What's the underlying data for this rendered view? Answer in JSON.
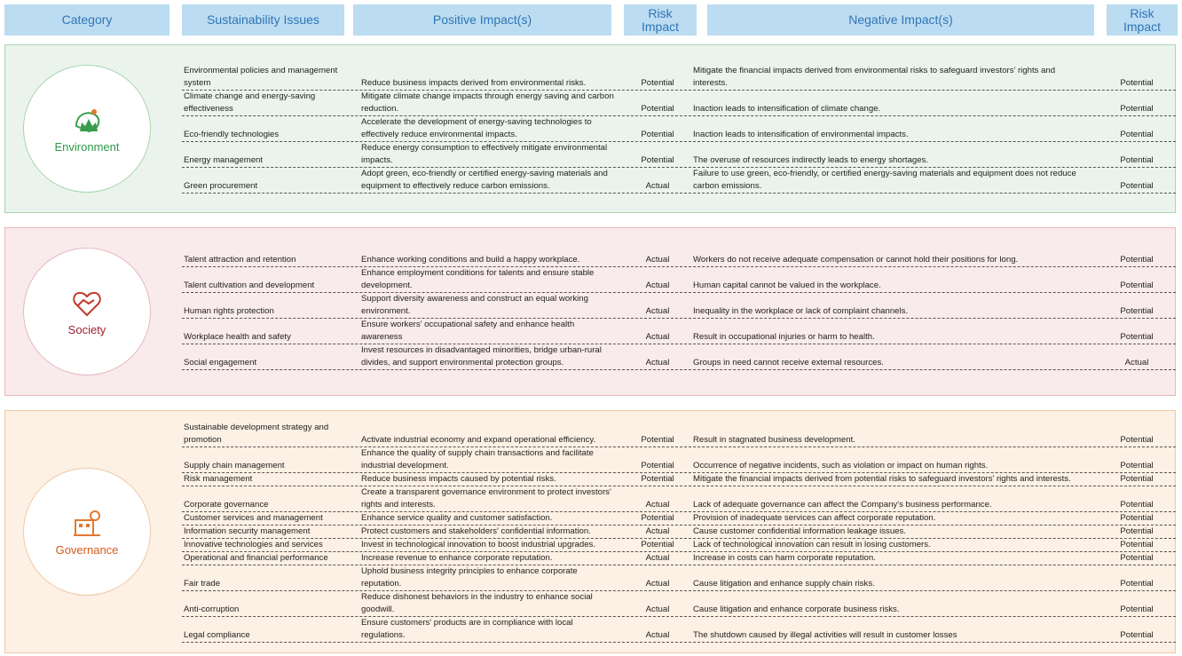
{
  "header": [
    "Category",
    "Sustainability Issues",
    "Positive Impact(s)",
    "Risk Impact",
    "Negative Impact(s)",
    "Risk Impact"
  ],
  "groups": [
    {
      "category": "Environment",
      "rows": [
        [
          "Environmental policies and management system",
          "Reduce business impacts derived from environmental risks.",
          "Potential",
          "Mitigate the financial impacts derived from environmental risks to safeguard investors’ rights and interests.",
          "Potential"
        ],
        [
          "Climate change and energy-saving effectiveness",
          "Mitigate climate change impacts through energy saving and carbon reduction.",
          "Potential",
          "Inaction leads to intensification of climate change.",
          "Potential"
        ],
        [
          "Eco-friendly technologies",
          "Accelerate the development of energy-saving technologies to effectively reduce environmental impacts.",
          "Potential",
          "Inaction leads to intensification of environmental impacts.",
          "Potential"
        ],
        [
          "Energy management",
          "Reduce energy consumption to effectively mitigate environmental impacts.",
          "Potential",
          "The overuse of resources indirectly leads to energy shortages.",
          "Potential"
        ],
        [
          "Green procurement",
          "Adopt green, eco-friendly or certified energy-saving materials and equipment to effectively reduce carbon emissions.",
          "Actual",
          "Failure to use green, eco-friendly, or certified energy-saving materials and equipment does not reduce carbon emissions.",
          "Potential"
        ]
      ]
    },
    {
      "category": "Society",
      "rows": [
        [
          "Talent attraction and retention",
          "Enhance working conditions and build a happy workplace.",
          "Actual",
          "Workers do not receive adequate compensation or cannot hold their positions for long.",
          "Potential"
        ],
        [
          "Talent cultivation and development",
          "Enhance employment conditions for talents and ensure stable development.",
          "Actual",
          "Human capital cannot be valued in the workplace.",
          "Potential"
        ],
        [
          "Human rights protection",
          "Support diversity awareness and construct an equal working environment.",
          "Actual",
          "Inequality in the workplace or lack of complaint channels.",
          "Potential"
        ],
        [
          "Workplace health and safety",
          "Ensure workers’ occupational safety and enhance health awareness",
          "Actual",
          "Result in occupational injuries or harm to health.",
          "Potential"
        ],
        [
          "Social engagement",
          "Invest resources in disadvantaged minorities, bridge urban-rural divides, and support environmental protection groups.",
          "Actual",
          "Groups in need cannot receive external resources.",
          "Actual"
        ]
      ]
    },
    {
      "category": "Governance",
      "rows": [
        [
          "Sustainable development strategy and promotion",
          "Activate industrial economy and expand operational efficiency.",
          "Potential",
          "Result in stagnated business development.",
          "Potential"
        ],
        [
          "Supply chain management",
          "Enhance the quality of supply chain transactions and facilitate industrial development.",
          "Potential",
          "Occurrence of negative incidents, such as violation or impact on human rights.",
          "Potential"
        ],
        [
          "Risk management",
          "Reduce business impacts caused by potential risks.",
          "Potential",
          "Mitigate the financial impacts derived from potential risks to safeguard investors’ rights and interests.",
          "Potential"
        ],
        [
          "Corporate governance",
          "Create a transparent governance environment to protect investors' rights and interests.",
          "Actual",
          "Lack of adequate governance can affect the Company's business performance.",
          "Potential"
        ],
        [
          "Customer services and management",
          "Enhance service quality and customer satisfaction.",
          "Potential",
          "Provision of inadequate services can affect corporate reputation.",
          "Potential"
        ],
        [
          "Information security management",
          "Protect customers and stakeholders' confidential information.",
          "Actual",
          "Cause customer confidential information leakage issues.",
          "Potential"
        ],
        [
          "Innovative technologies and services",
          "Invest in technological innovation to boost industrial upgrades.",
          "Potential",
          "Lack of technological innovation can result in losing customers.",
          "Potential"
        ],
        [
          "Operational and financial performance",
          "Increase revenue to enhance corporate reputation.",
          "Actual",
          "Increase in costs can harm corporate reputation.",
          "Potential"
        ],
        [
          "Fair trade",
          "Uphold business integrity principles to enhance corporate reputation.",
          "Actual",
          "Cause litigation and enhance supply chain risks.",
          "Potential"
        ],
        [
          "Anti-corruption",
          "Reduce dishonest behaviors in the industry to enhance social goodwill.",
          "Actual",
          "Cause litigation and enhance corporate business risks.",
          "Potential"
        ],
        [
          "Legal compliance",
          "Ensure customers' products are in compliance with local regulations.",
          "Actual",
          "The shutdown caused by illegal activities will result in customer losses",
          "Potential"
        ]
      ]
    }
  ]
}
